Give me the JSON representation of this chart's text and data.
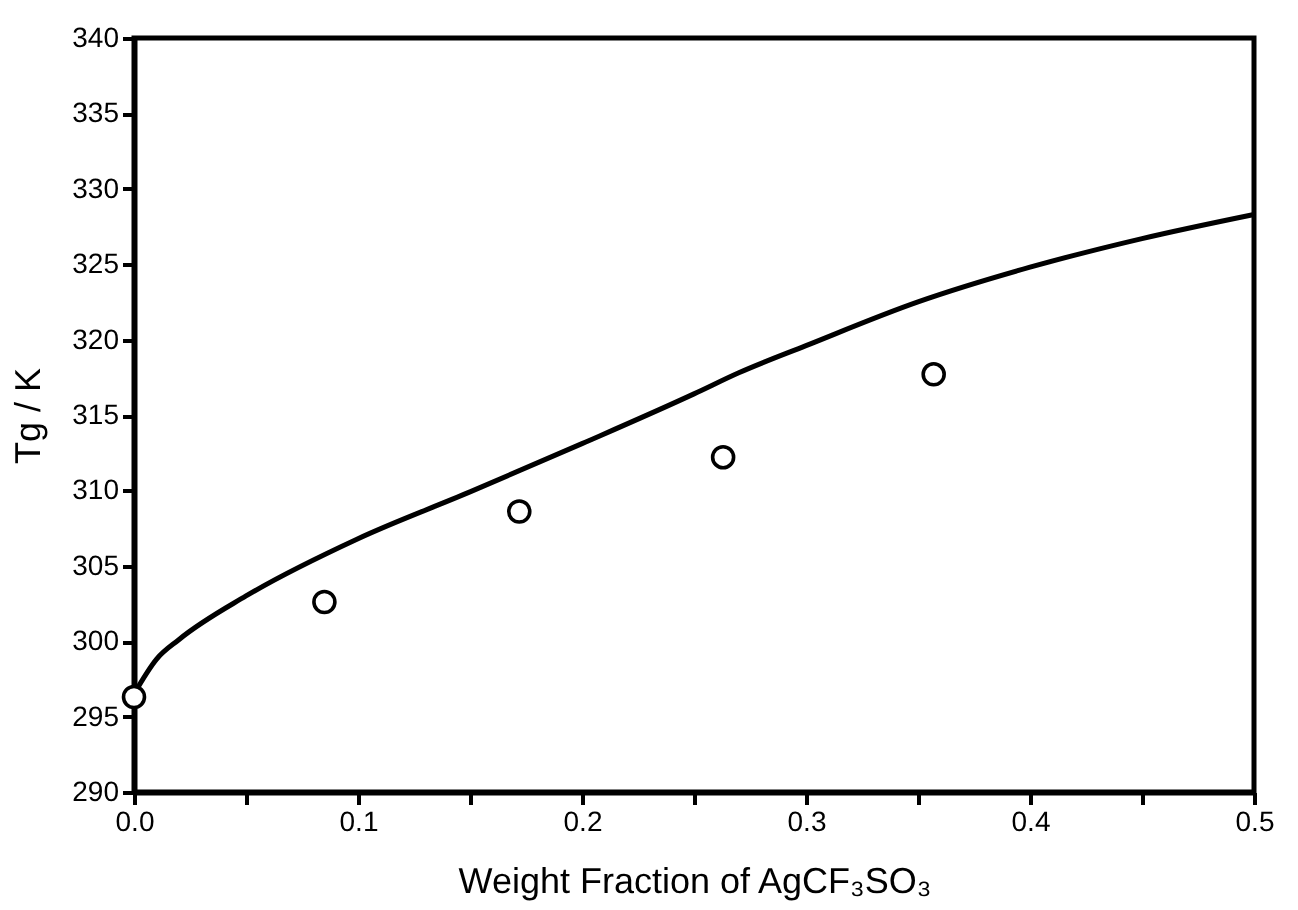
{
  "chart_data": {
    "type": "scatter",
    "xlabel": "Weight Fraction of AgCF₃SO₃",
    "ylabel": "Tg / K",
    "xlim": [
      0,
      0.5
    ],
    "ylim": [
      290,
      340
    ],
    "xticks": [
      {
        "value": 0,
        "label": "0.0"
      },
      {
        "value": 0.05,
        "label": null
      },
      {
        "value": 0.1,
        "label": "0.1"
      },
      {
        "value": 0.15,
        "label": null
      },
      {
        "value": 0.2,
        "label": "0.2"
      },
      {
        "value": 0.25,
        "label": null
      },
      {
        "value": 0.3,
        "label": "0.3"
      },
      {
        "value": 0.35,
        "label": null
      },
      {
        "value": 0.4,
        "label": "0.4"
      },
      {
        "value": 0.45,
        "label": null
      },
      {
        "value": 0.5,
        "label": "0.5"
      }
    ],
    "yticks": [
      290,
      295,
      300,
      305,
      310,
      315,
      320,
      325,
      330,
      335,
      340
    ],
    "grid": false,
    "series": [
      {
        "type": "line",
        "color": "#000000",
        "marker": "none",
        "line_style": "solid",
        "x": [
          0,
          0.01,
          0.02,
          0.05,
          0.1,
          0.15,
          0.2,
          0.25,
          0.27,
          0.3,
          0.35,
          0.4,
          0.45,
          0.5
        ],
        "values": [
          296.5,
          298.8,
          300.1,
          303.0,
          306.8,
          309.9,
          313.1,
          316.4,
          317.8,
          319.6,
          322.5,
          324.8,
          326.7,
          328.3
        ]
      },
      {
        "color": "#000000",
        "marker": "circle",
        "x": [
          0,
          0.085,
          0.172,
          0.263,
          0.357
        ],
        "values": [
          296.3,
          302.6,
          308.6,
          312.2,
          317.7
        ]
      }
    ]
  }
}
